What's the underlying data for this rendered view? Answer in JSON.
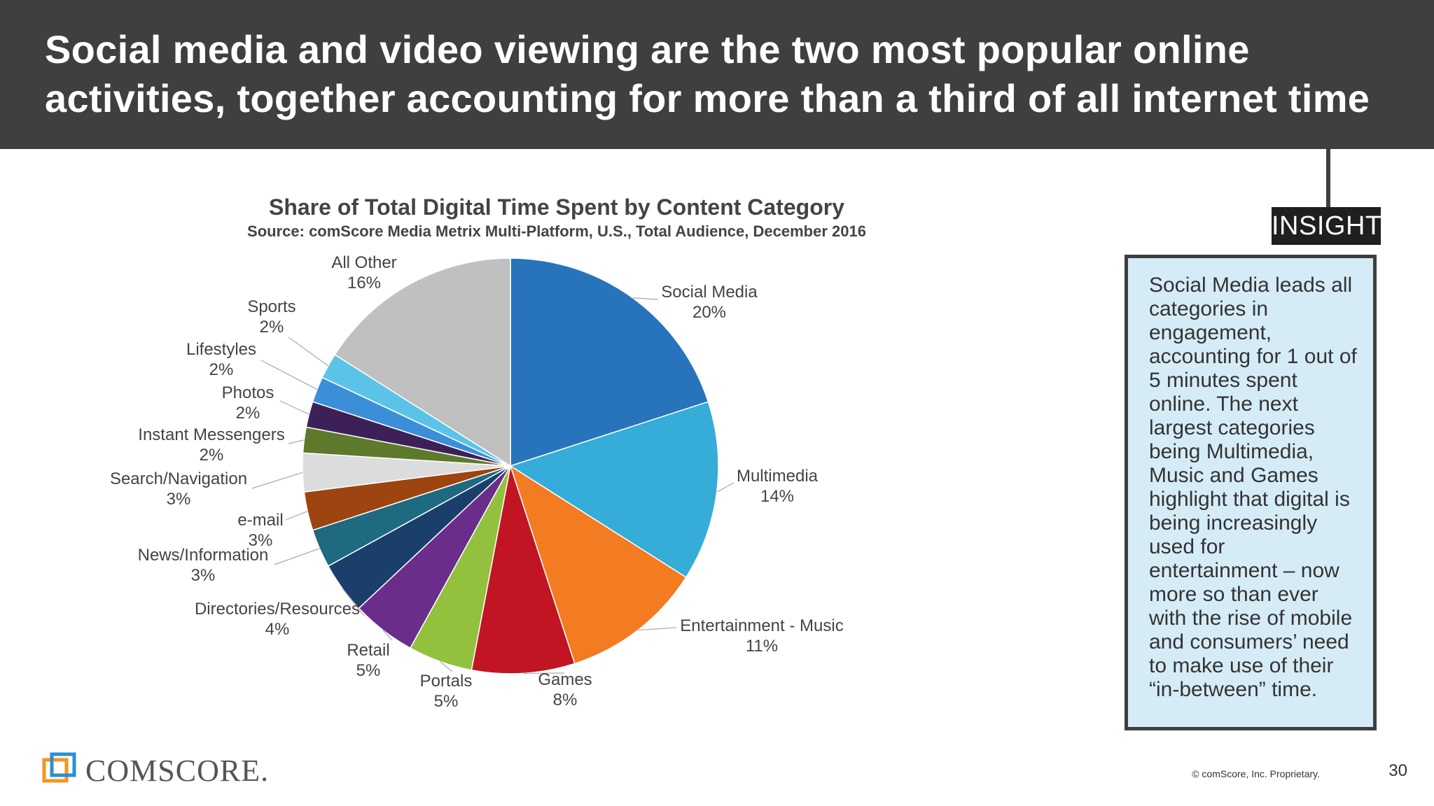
{
  "header": {
    "title": "Social media and video viewing are the two most popular online activities, together accounting for more than a third of all internet time"
  },
  "chart_data": {
    "type": "pie",
    "title": "Share of Total Digital Time Spent by Content Category",
    "subtitle": "Source: comScore Media Metrix Multi-Platform, U.S., Total Audience, December 2016",
    "slices": [
      {
        "name": "Social Media",
        "label": "20%",
        "value": 20,
        "color": "#2874bc"
      },
      {
        "name": "Multimedia",
        "label": "14%",
        "value": 14,
        "color": "#36acd9"
      },
      {
        "name": "Entertainment - Music",
        "label": "11%",
        "value": 11,
        "color": "#f37b21"
      },
      {
        "name": "Games",
        "label": "8%",
        "value": 8,
        "color": "#c11524"
      },
      {
        "name": "Portals",
        "label": "5%",
        "value": 5,
        "color": "#93c13e"
      },
      {
        "name": "Retail",
        "label": "5%",
        "value": 5,
        "color": "#6a2d8c"
      },
      {
        "name": "Directories/Resources",
        "label": "4%",
        "value": 4,
        "color": "#1b3f6b"
      },
      {
        "name": "News/Information",
        "label": "3%",
        "value": 3,
        "color": "#1e6a80"
      },
      {
        "name": "e-mail",
        "label": "3%",
        "value": 3,
        "color": "#9e4410"
      },
      {
        "name": "Search/Navigation",
        "label": "3%",
        "value": 3,
        "color": "#dcdcdc"
      },
      {
        "name": "Instant Messengers",
        "label": "2%",
        "value": 2,
        "color": "#5d7a2c"
      },
      {
        "name": "Photos",
        "label": "2%",
        "value": 2,
        "color": "#3e2058"
      },
      {
        "name": "Lifestyles",
        "label": "2%",
        "value": 2,
        "color": "#3b8fd8"
      },
      {
        "name": "Sports",
        "label": "2%",
        "value": 2,
        "color": "#5cc3e8"
      },
      {
        "name": "All Other",
        "label": "16%",
        "value": 16,
        "color": "#c0c0c0"
      }
    ]
  },
  "insight": {
    "tag": "INSIGHT",
    "text": "Social Media leads all categories in engagement, accounting for 1 out of 5 minutes spent online. The next largest categories being Multimedia, Music and Games highlight that digital is being increasingly used for entertainment – now more so than ever with the rise of mobile and consumers’ need to make use of their “in-between” time."
  },
  "footer": {
    "logo_text": "COMSCORE.",
    "copyright": "© comScore, Inc. Proprietary.",
    "page_number": "30"
  }
}
